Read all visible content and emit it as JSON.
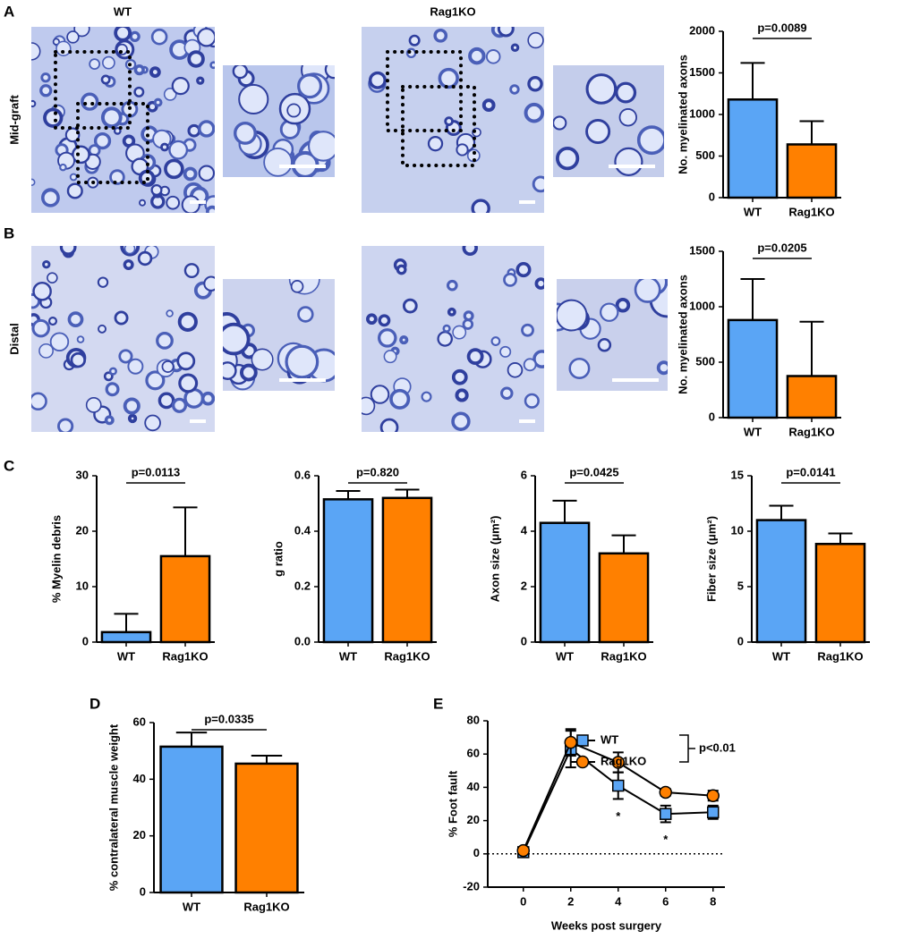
{
  "panels": [
    "A",
    "B",
    "C",
    "D",
    "E"
  ],
  "columns": [
    "WT",
    "Rag1KO"
  ],
  "rows": [
    "Mid-graft",
    "Distal"
  ],
  "chart_data": [
    {
      "type": "bar",
      "ylabel": "No. myelinated axons",
      "categories": [
        "WT",
        "Rag1KO"
      ],
      "values": [
        1180,
        640
      ],
      "errors": [
        440,
        280
      ],
      "colors": [
        "#5aa5f5",
        "#ff8000"
      ],
      "ylim": [
        0,
        2000
      ],
      "yticks": [
        0,
        500,
        1000,
        1500,
        2000
      ],
      "annotation": "p=0.0089"
    },
    {
      "type": "bar",
      "ylabel": "No. myelinated axons",
      "categories": [
        "WT",
        "Rag1KO"
      ],
      "values": [
        880,
        375
      ],
      "errors": [
        370,
        490
      ],
      "colors": [
        "#5aa5f5",
        "#ff8000"
      ],
      "ylim": [
        0,
        1500
      ],
      "yticks": [
        0,
        500,
        1000,
        1500
      ],
      "annotation": "p=0.0205"
    },
    {
      "type": "bar",
      "ylabel": "% Myelin debris",
      "categories": [
        "WT",
        "Rag1KO"
      ],
      "values": [
        1.8,
        15.5
      ],
      "errors": [
        3.3,
        8.8
      ],
      "colors": [
        "#5aa5f5",
        "#ff8000"
      ],
      "ylim": [
        0,
        30
      ],
      "yticks": [
        0,
        10,
        20,
        30
      ],
      "annotation": "p=0.0113"
    },
    {
      "type": "bar",
      "ylabel": "g ratio",
      "categories": [
        "WT",
        "Rag1KO"
      ],
      "values": [
        0.515,
        0.52
      ],
      "errors": [
        0.03,
        0.03
      ],
      "colors": [
        "#5aa5f5",
        "#ff8000"
      ],
      "ylim": [
        0,
        0.6
      ],
      "yticks": [
        {
          "value": 0,
          "label": "0.0"
        },
        0.2,
        0.4,
        0.6
      ],
      "annotation": "p=0.820"
    },
    {
      "type": "bar",
      "ylabel": "Axon size (μm²)",
      "categories": [
        "WT",
        "Rag1KO"
      ],
      "values": [
        4.3,
        3.2
      ],
      "errors": [
        0.8,
        0.65
      ],
      "colors": [
        "#5aa5f5",
        "#ff8000"
      ],
      "ylim": [
        0,
        6
      ],
      "yticks": [
        0,
        2,
        4,
        6
      ],
      "annotation": "p=0.0425"
    },
    {
      "type": "bar",
      "ylabel": "Fiber size (μm²)",
      "categories": [
        "WT",
        "Rag1KO"
      ],
      "values": [
        11.0,
        8.85
      ],
      "errors": [
        1.3,
        0.95
      ],
      "colors": [
        "#5aa5f5",
        "#ff8000"
      ],
      "ylim": [
        0,
        15
      ],
      "yticks": [
        0,
        5,
        10,
        15
      ],
      "annotation": "p=0.0141"
    },
    {
      "type": "bar",
      "ylabel": "% contralateral muscle weight",
      "categories": [
        "WT",
        "Rag1KO"
      ],
      "values": [
        51.5,
        45.5
      ],
      "errors": [
        5,
        2.8
      ],
      "colors": [
        "#5aa5f5",
        "#ff8000"
      ],
      "ylim": [
        0,
        60
      ],
      "yticks": [
        0,
        20,
        40,
        60
      ],
      "annotation": "p=0.0335"
    },
    {
      "type": "line",
      "xlabel": "Weeks post surgery",
      "ylabel": "% Foot fault",
      "x": [
        0,
        2,
        4,
        6,
        8
      ],
      "xlim": [
        -1.5,
        8.5
      ],
      "xticks": [
        0,
        2,
        4,
        6,
        8
      ],
      "ylim": [
        -20,
        80
      ],
      "yticks": [
        -20,
        0,
        20,
        40,
        60,
        80
      ],
      "hline": 0,
      "legend": "top",
      "series": [
        {
          "name": "WT",
          "color": "#5aa5f5",
          "marker": "square",
          "values": [
            1,
            63,
            41,
            24,
            25
          ],
          "errors": [
            2,
            11,
            8,
            5,
            4
          ]
        },
        {
          "name": "Rag1KO",
          "color": "#ff8000",
          "marker": "circle",
          "values": [
            2,
            67,
            55,
            37,
            35
          ],
          "errors": [
            2,
            8,
            6,
            2,
            3
          ]
        }
      ],
      "annotations": [
        {
          "text": "*",
          "x": 4
        },
        {
          "text": "*",
          "x": 6
        }
      ],
      "legend_note": "p<0.01"
    }
  ]
}
